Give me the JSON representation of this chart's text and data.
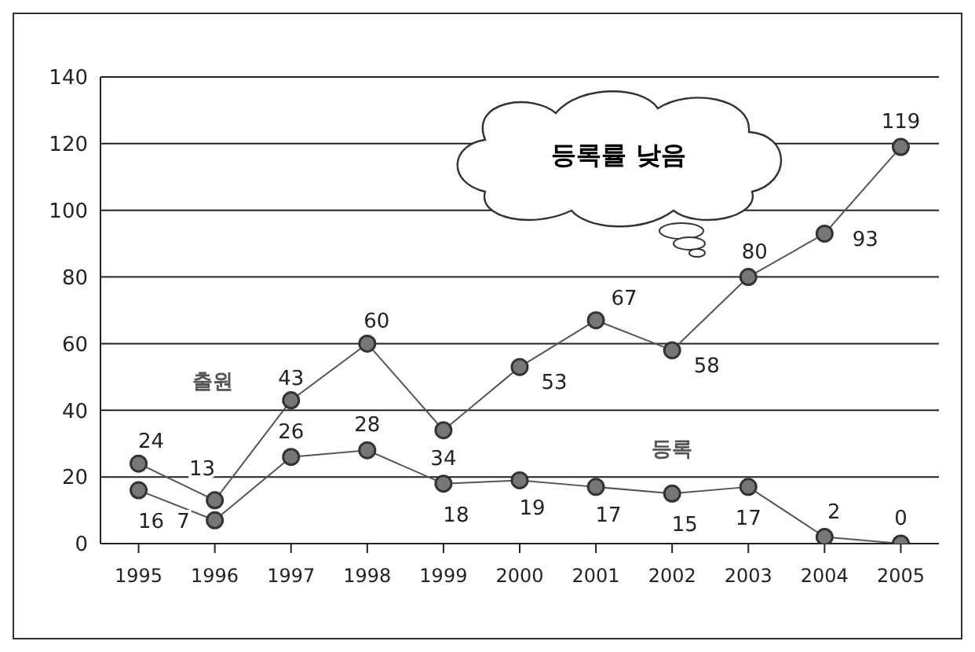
{
  "chart_data": {
    "type": "line",
    "categories": [
      "1995",
      "1996",
      "1997",
      "1998",
      "1999",
      "2000",
      "2001",
      "2002",
      "2003",
      "2004",
      "2005"
    ],
    "series": [
      {
        "name": "출원",
        "color": "#555555",
        "values": [
          24,
          13,
          43,
          60,
          34,
          53,
          67,
          58,
          80,
          93,
          119
        ]
      },
      {
        "name": "등록",
        "color": "#555555",
        "values": [
          16,
          7,
          26,
          28,
          18,
          19,
          17,
          15,
          17,
          2,
          0
        ]
      }
    ],
    "ylim": [
      0,
      140
    ],
    "yticks": [
      0,
      20,
      40,
      60,
      80,
      100,
      120,
      140
    ],
    "grid": "y",
    "legend": false,
    "marker": "circle",
    "line_style": "solid",
    "data_labels": true,
    "annotations": [
      "등록률 낮음"
    ]
  }
}
